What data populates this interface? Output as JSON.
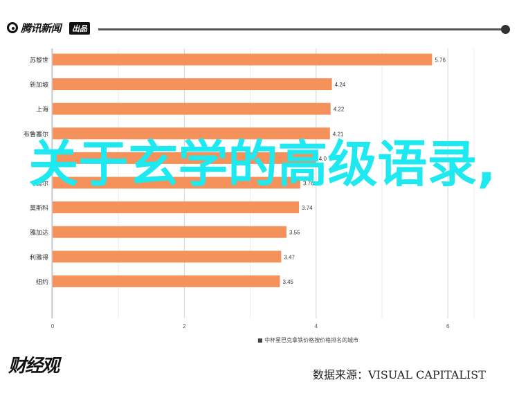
{
  "header": {
    "brand": "腾讯新闻",
    "brand_tag": "出品"
  },
  "overlay_title": "关于玄学的高级语录,",
  "footer": {
    "logo": "财经观",
    "source": "数据来源：VISUAL CAPITALIST"
  },
  "colors": {
    "bar": "#f5915a",
    "overlay": "#1ee8f0"
  },
  "chart_data": {
    "type": "bar",
    "orientation": "horizontal",
    "categories": [
      "苏黎世",
      "新加坡",
      "上海",
      "布鲁塞尔",
      "",
      "首尔",
      "莫斯科",
      "雅加达",
      "利雅得",
      "纽约"
    ],
    "values": [
      5.76,
      4.24,
      4.22,
      4.21,
      4.0,
      3.76,
      3.74,
      3.55,
      3.47,
      3.45
    ],
    "value_labels": [
      "5.76",
      "4.24",
      "4.22",
      "4.21",
      "4.0",
      "3.76",
      "3.74",
      "3.55",
      "3.47",
      "3.45"
    ],
    "xlabel": "■ 中杯星巴克拿铁价格按价格排名的城市",
    "xticks": [
      0,
      2,
      4,
      6
    ],
    "xlim": [
      0,
      6.5
    ],
    "grid": true
  }
}
